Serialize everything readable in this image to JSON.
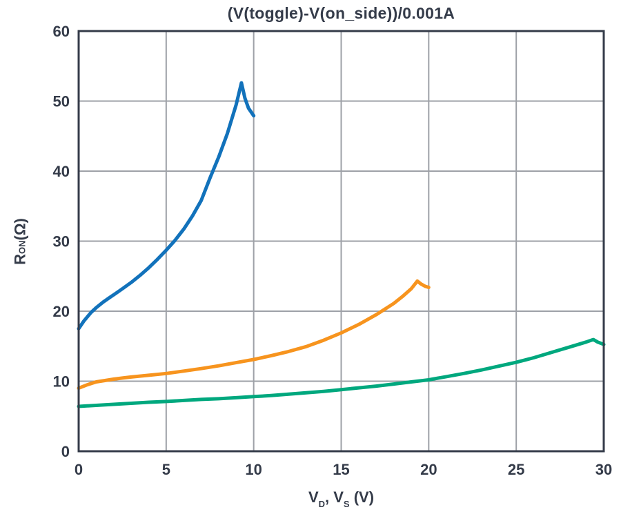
{
  "chart_data": {
    "type": "line",
    "title": "(V(toggle)-V(on_side))/0.001A",
    "xlabel": "V_D, V_S (V)",
    "ylabel": "R_ON (Ohm)",
    "xlim": [
      0,
      30
    ],
    "ylim": [
      0,
      60
    ],
    "x_ticks": [
      0,
      5,
      10,
      15,
      20,
      25,
      30
    ],
    "y_ticks": [
      0,
      10,
      20,
      30,
      40,
      50,
      60
    ],
    "grid": true,
    "legend_position": "none",
    "colors": {
      "axis": "#343B49",
      "grid": "#9EA1A7",
      "text": "#343B49",
      "background": "#FFFFFF"
    },
    "series": [
      {
        "name": "curve-blue",
        "color": "#1272BB",
        "points": [
          [
            0,
            17.5
          ],
          [
            0.3,
            18.6
          ],
          [
            0.7,
            19.8
          ],
          [
            1,
            20.5
          ],
          [
            1.4,
            21.3
          ],
          [
            1.8,
            22.0
          ],
          [
            2.1,
            22.5
          ],
          [
            2.5,
            23.2
          ],
          [
            3,
            24.1
          ],
          [
            3.5,
            25.1
          ],
          [
            4,
            26.2
          ],
          [
            4.5,
            27.4
          ],
          [
            5,
            28.7
          ],
          [
            5.5,
            30.1
          ],
          [
            6,
            31.7
          ],
          [
            6.5,
            33.6
          ],
          [
            7,
            35.8
          ],
          [
            7.5,
            39.0
          ],
          [
            8,
            42.0
          ],
          [
            8.5,
            45.4
          ],
          [
            9,
            49.5
          ],
          [
            9.3,
            52.6
          ],
          [
            9.5,
            50.4
          ],
          [
            9.7,
            49.0
          ],
          [
            10,
            47.9
          ]
        ]
      },
      {
        "name": "curve-orange",
        "color": "#F7941E",
        "points": [
          [
            0,
            9.0
          ],
          [
            0.5,
            9.5
          ],
          [
            1,
            9.9
          ],
          [
            1.5,
            10.1
          ],
          [
            2,
            10.3
          ],
          [
            2.5,
            10.45
          ],
          [
            3,
            10.6
          ],
          [
            4,
            10.85
          ],
          [
            5,
            11.1
          ],
          [
            6,
            11.45
          ],
          [
            7,
            11.8
          ],
          [
            8,
            12.2
          ],
          [
            9,
            12.65
          ],
          [
            10,
            13.1
          ],
          [
            11,
            13.65
          ],
          [
            12,
            14.25
          ],
          [
            13,
            14.95
          ],
          [
            14,
            15.85
          ],
          [
            15,
            16.9
          ],
          [
            16,
            18.1
          ],
          [
            17,
            19.5
          ],
          [
            18,
            21.1
          ],
          [
            18.5,
            22.1
          ],
          [
            19,
            23.2
          ],
          [
            19.35,
            24.3
          ],
          [
            19.55,
            23.9
          ],
          [
            19.8,
            23.55
          ],
          [
            20,
            23.4
          ]
        ]
      },
      {
        "name": "curve-green",
        "color": "#00A87E",
        "points": [
          [
            0,
            6.4
          ],
          [
            1,
            6.55
          ],
          [
            2,
            6.7
          ],
          [
            3,
            6.85
          ],
          [
            4,
            7.0
          ],
          [
            5,
            7.1
          ],
          [
            6,
            7.25
          ],
          [
            7,
            7.4
          ],
          [
            8,
            7.5
          ],
          [
            9,
            7.65
          ],
          [
            10,
            7.8
          ],
          [
            11,
            7.95
          ],
          [
            12,
            8.15
          ],
          [
            13,
            8.35
          ],
          [
            14,
            8.55
          ],
          [
            15,
            8.8
          ],
          [
            16,
            9.05
          ],
          [
            17,
            9.3
          ],
          [
            18,
            9.6
          ],
          [
            19,
            9.9
          ],
          [
            20,
            10.2
          ],
          [
            21,
            10.65
          ],
          [
            22,
            11.1
          ],
          [
            23,
            11.6
          ],
          [
            24,
            12.15
          ],
          [
            25,
            12.7
          ],
          [
            26,
            13.35
          ],
          [
            27,
            14.1
          ],
          [
            28,
            14.85
          ],
          [
            29,
            15.6
          ],
          [
            29.4,
            15.95
          ],
          [
            29.65,
            15.6
          ],
          [
            30,
            15.25
          ]
        ]
      }
    ]
  },
  "x_axis_label": {
    "v1": "V",
    "sub1": "D",
    "mid": ", V",
    "sub2": "S",
    "unit": " (V)"
  },
  "y_axis_label": {
    "sym": "R",
    "sub": "ON",
    "unit": " (Ω)"
  }
}
